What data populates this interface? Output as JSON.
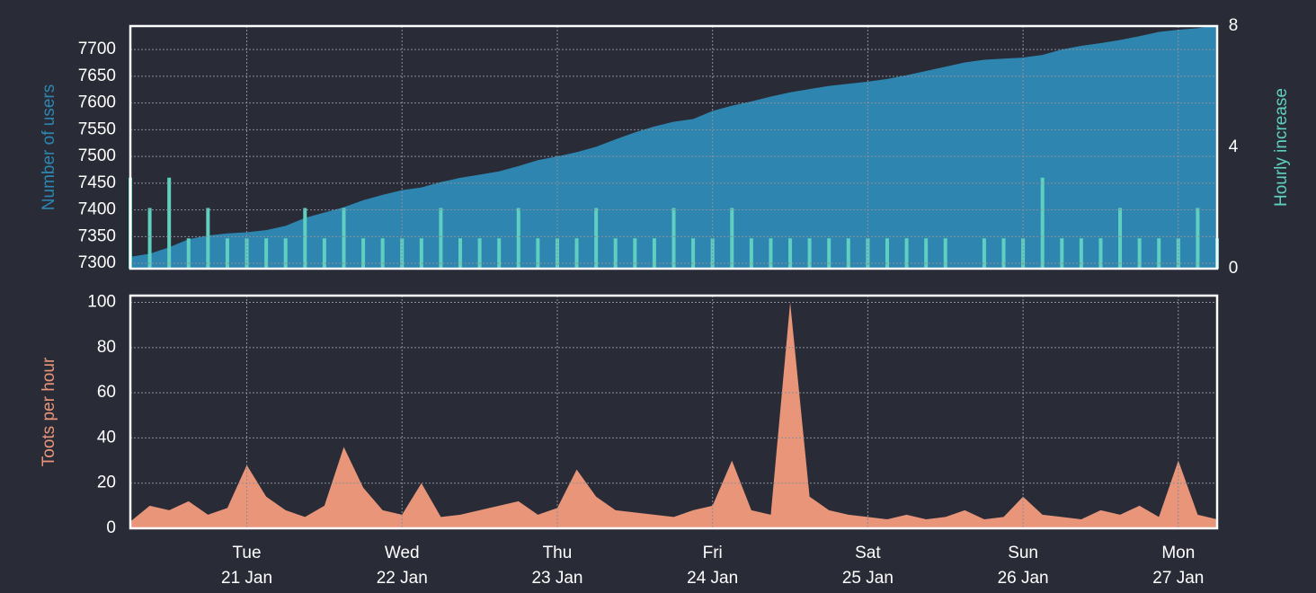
{
  "chart_data": [
    {
      "type": "area",
      "x": [
        20.25,
        20.375,
        20.5,
        20.625,
        20.75,
        20.875,
        21,
        21.125,
        21.25,
        21.375,
        21.5,
        21.625,
        21.75,
        21.875,
        22,
        22.125,
        22.25,
        22.375,
        22.5,
        22.625,
        22.75,
        22.875,
        23,
        23.125,
        23.25,
        23.375,
        23.5,
        23.625,
        23.75,
        23.875,
        24,
        24.125,
        24.25,
        24.375,
        24.5,
        24.625,
        24.75,
        24.875,
        25,
        25.125,
        25.25,
        25.375,
        25.5,
        25.625,
        25.75,
        25.875,
        26,
        26.125,
        26.25,
        26.375,
        26.5,
        26.625,
        26.75,
        26.875,
        27,
        27.125,
        27.25
      ],
      "xlim": [
        20.25,
        27.25
      ],
      "xticks": [
        21,
        22,
        23,
        24,
        25,
        26,
        27
      ],
      "ylabel": "Number of users",
      "y2label": "Hourly increase",
      "ylim": [
        7290,
        7744
      ],
      "yticks": [
        7300,
        7350,
        7400,
        7450,
        7500,
        7550,
        7600,
        7650,
        7700
      ],
      "y2lim": [
        0,
        8
      ],
      "y2ticks": [
        0,
        4,
        8
      ],
      "grid": true,
      "series": [
        {
          "name": "Number of users",
          "color": "#2e86b0",
          "values": [
            7312,
            7318,
            7330,
            7345,
            7352,
            7356,
            7358,
            7362,
            7370,
            7385,
            7395,
            7405,
            7418,
            7428,
            7437,
            7442,
            7452,
            7460,
            7466,
            7472,
            7482,
            7493,
            7500,
            7508,
            7518,
            7532,
            7545,
            7556,
            7565,
            7570,
            7585,
            7595,
            7603,
            7612,
            7620,
            7626,
            7632,
            7636,
            7640,
            7645,
            7652,
            7660,
            7668,
            7676,
            7681,
            7683,
            7685,
            7690,
            7700,
            7707,
            7712,
            7718,
            7725,
            7733,
            7737,
            7740,
            7746
          ]
        },
        {
          "name": "Hourly increase",
          "color": "#5fd0c0",
          "axis": "y2",
          "type": "bar",
          "values": [
            3,
            2,
            3,
            1,
            2,
            1,
            1,
            1,
            1,
            2,
            1,
            2,
            1,
            1,
            1,
            1,
            2,
            1,
            1,
            1,
            2,
            1,
            1,
            1,
            2,
            1,
            1,
            1,
            2,
            1,
            1,
            2,
            1,
            1,
            1,
            1,
            1,
            1,
            1,
            1,
            1,
            1,
            1,
            0,
            1,
            1,
            1,
            3,
            1,
            1,
            1,
            2,
            1,
            1,
            1,
            2,
            1
          ]
        }
      ]
    },
    {
      "type": "area",
      "x": [
        20.25,
        20.375,
        20.5,
        20.625,
        20.75,
        20.875,
        21,
        21.125,
        21.25,
        21.375,
        21.5,
        21.625,
        21.75,
        21.875,
        22,
        22.125,
        22.25,
        22.375,
        22.5,
        22.625,
        22.75,
        22.875,
        23,
        23.125,
        23.25,
        23.375,
        23.5,
        23.625,
        23.75,
        23.875,
        24,
        24.125,
        24.25,
        24.375,
        24.5,
        24.625,
        24.75,
        24.875,
        25,
        25.125,
        25.25,
        25.375,
        25.5,
        25.625,
        25.75,
        25.875,
        26,
        26.125,
        26.25,
        26.375,
        26.5,
        26.625,
        26.75,
        26.875,
        27,
        27.125,
        27.25
      ],
      "xlim": [
        20.25,
        27.25
      ],
      "xticks": [
        {
          "value": 21,
          "label": "Tue\n21 Jan"
        },
        {
          "value": 22,
          "label": "Wed\n22 Jan"
        },
        {
          "value": 23,
          "label": "Thu\n23 Jan"
        },
        {
          "value": 24,
          "label": "Fri\n24 Jan"
        },
        {
          "value": 25,
          "label": "Sat\n25 Jan"
        },
        {
          "value": 26,
          "label": "Sun\n26 Jan"
        },
        {
          "value": 27,
          "label": "Mon\n27 Jan"
        }
      ],
      "ylabel": "Toots per hour",
      "ylim": [
        0,
        103
      ],
      "yticks": [
        0,
        20,
        40,
        60,
        80,
        100
      ],
      "grid": true,
      "series": [
        {
          "name": "Toots per hour",
          "color": "#e8957a",
          "values": [
            3,
            10,
            8,
            12,
            6,
            9,
            28,
            14,
            8,
            5,
            10,
            36,
            18,
            8,
            6,
            20,
            5,
            6,
            8,
            10,
            12,
            6,
            9,
            26,
            14,
            8,
            7,
            6,
            5,
            8,
            10,
            30,
            8,
            6,
            100,
            14,
            8,
            6,
            5,
            4,
            6,
            4,
            5,
            8,
            4,
            5,
            14,
            6,
            5,
            4,
            8,
            6,
            10,
            5,
            30,
            6,
            4
          ]
        }
      ]
    }
  ]
}
